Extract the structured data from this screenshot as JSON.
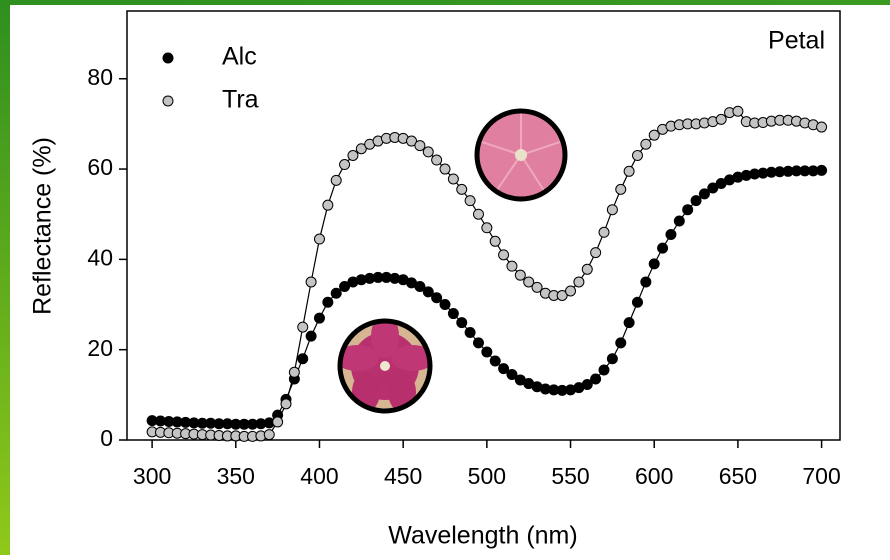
{
  "chart_data": {
    "type": "line",
    "annotation": "Petal",
    "x_label": "Wavelength (nm)",
    "y_label": "Reflectance (%)",
    "legend_position": "upper left",
    "xlim": [
      285,
      711
    ],
    "ylim": [
      0,
      95
    ],
    "xticks": [
      300,
      350,
      400,
      450,
      500,
      550,
      600,
      650,
      700
    ],
    "yticks": [
      0,
      20,
      40,
      60,
      80
    ],
    "x": [
      300,
      305,
      310,
      315,
      320,
      325,
      330,
      335,
      340,
      345,
      350,
      355,
      360,
      365,
      370,
      375,
      380,
      385,
      390,
      395,
      400,
      405,
      410,
      415,
      420,
      425,
      430,
      435,
      440,
      445,
      450,
      455,
      460,
      465,
      470,
      475,
      480,
      485,
      490,
      495,
      500,
      505,
      510,
      515,
      520,
      525,
      530,
      535,
      540,
      545,
      550,
      555,
      560,
      565,
      570,
      575,
      580,
      585,
      590,
      595,
      600,
      605,
      610,
      615,
      620,
      625,
      630,
      635,
      640,
      645,
      650,
      655,
      660,
      665,
      670,
      675,
      680,
      685,
      690,
      695,
      700
    ],
    "series": [
      {
        "name": "Alc",
        "color": "#000000",
        "values": [
          4.3,
          4.2,
          4.1,
          4.0,
          3.9,
          3.8,
          3.7,
          3.7,
          3.6,
          3.6,
          3.5,
          3.5,
          3.5,
          3.6,
          3.8,
          5.5,
          9,
          13.5,
          18,
          23,
          27,
          30.5,
          32.5,
          34,
          35,
          35.5,
          35.8,
          36,
          36,
          35.8,
          35.5,
          34.8,
          34,
          32.8,
          31.5,
          30,
          28,
          26,
          23.8,
          21.5,
          19.5,
          17.5,
          15.8,
          14.5,
          13.3,
          12.5,
          11.8,
          11.3,
          11.1,
          11,
          11.1,
          11.6,
          12.3,
          13.5,
          15.5,
          18,
          21.5,
          26,
          30.5,
          35,
          39,
          42.5,
          45.5,
          48.5,
          51,
          53,
          54.5,
          55.8,
          56.8,
          57.6,
          58.2,
          58.6,
          58.9,
          59.1,
          59.3,
          59.4,
          59.5,
          59.6,
          59.6,
          59.6,
          59.7
        ]
      },
      {
        "name": "Tra",
        "color": "#c4c4c4",
        "values": [
          1.8,
          1.7,
          1.6,
          1.5,
          1.4,
          1.3,
          1.2,
          1.1,
          1.0,
          0.9,
          0.9,
          0.8,
          0.8,
          0.9,
          1.2,
          4,
          8,
          15,
          25,
          35,
          44.5,
          52,
          57.5,
          61,
          63,
          64.5,
          65.5,
          66.2,
          66.8,
          67,
          66.8,
          66.2,
          65.2,
          63.8,
          62,
          60,
          57.8,
          55.5,
          53,
          50,
          47,
          44,
          41,
          38.5,
          36.5,
          35,
          33.8,
          32.5,
          32,
          32,
          33,
          35,
          37.8,
          41.5,
          46,
          51,
          55.5,
          59.5,
          63,
          65.5,
          67.5,
          68.8,
          69.5,
          69.8,
          70,
          70,
          70.2,
          70.5,
          71,
          72.5,
          72.8,
          70.5,
          70.2,
          70.3,
          70.6,
          70.8,
          70.8,
          70.6,
          70.2,
          69.8,
          69.3
        ]
      }
    ]
  }
}
